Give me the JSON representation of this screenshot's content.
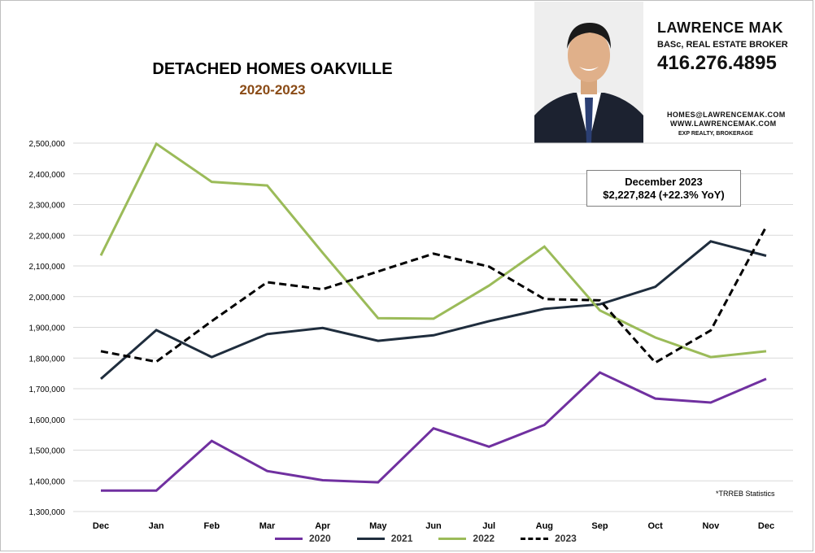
{
  "header": {
    "title": "DETACHED HOMES OAKVILLE",
    "subtitle": "2020-2023"
  },
  "agent": {
    "name": "LAWRENCE MAK",
    "role": "BASc, REAL ESTATE BROKER",
    "phone": "416.276.4895",
    "email": "HOMES@LAWRENCEMAK.COM",
    "website": "WWW.LAWRENCEMAK.COM",
    "brokerage": "EXP REALTY, BROKERAGE"
  },
  "callout": {
    "line1": "December 2023",
    "line2": "$2,227,824  (+22.3%  YoY)"
  },
  "source_note": "*TRREB Statistics",
  "colors": {
    "2020": "#7030a0",
    "2021": "#1f2d3d",
    "2022": "#9bbb59",
    "2023": "#000000",
    "grid": "#d9d9d9",
    "subtitle": "#8a4b16"
  },
  "chart_data": {
    "type": "line",
    "categories": [
      "Dec",
      "Jan",
      "Feb",
      "Mar",
      "Apr",
      "May",
      "Jun",
      "Jul",
      "Aug",
      "Sep",
      "Oct",
      "Nov",
      "Dec"
    ],
    "y_tick_labels": [
      "1,300,000",
      "1,400,000",
      "1,500,000",
      "1,600,000",
      "1,700,000",
      "1,800,000",
      "1,900,000",
      "2,000,000",
      "2,100,000",
      "2,200,000",
      "2,300,000",
      "2,400,000",
      "2,500,000"
    ],
    "ylim": [
      1300000,
      2500000
    ],
    "grid": true,
    "legend_position": "bottom",
    "series": [
      {
        "name": "2020",
        "style": "solid",
        "values": [
          1368000,
          1368000,
          1530000,
          1432000,
          1402000,
          1395000,
          1571000,
          1511000,
          1582000,
          1753000,
          1668000,
          1655000,
          1732000
        ]
      },
      {
        "name": "2021",
        "style": "solid",
        "values": [
          1732000,
          1891000,
          1803000,
          1878000,
          1898000,
          1856000,
          1874000,
          1920000,
          1960000,
          1975000,
          2032000,
          2180000,
          2133000
        ]
      },
      {
        "name": "2022",
        "style": "solid",
        "values": [
          2134000,
          2498000,
          2374000,
          2362000,
          2143000,
          1930000,
          1928000,
          2036000,
          2163000,
          1955000,
          1867000,
          1803000,
          1822000
        ]
      },
      {
        "name": "2023",
        "style": "dashed",
        "values": [
          1822000,
          1788000,
          1920000,
          2047000,
          2024000,
          2082000,
          2140000,
          2098000,
          1992000,
          1988000,
          1785000,
          1890000,
          2227824
        ]
      }
    ]
  }
}
